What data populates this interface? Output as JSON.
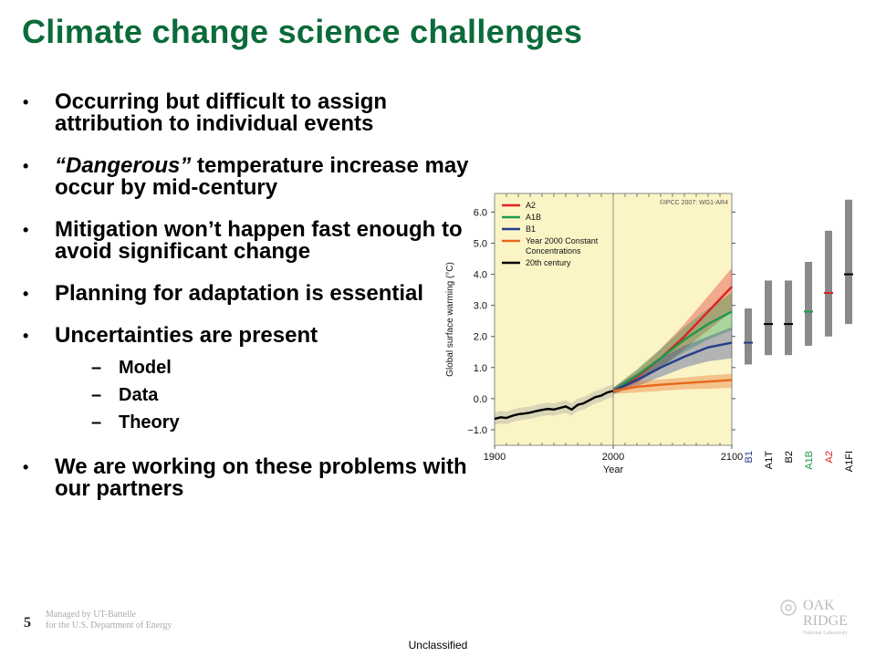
{
  "slide": {
    "title": "Climate change science challenges",
    "page_number": "5",
    "managed_by_line1": "Managed by UT-Battelle",
    "managed_by_line2": "for the U.S. Department of Energy",
    "classification": "Unclassified",
    "logo_line1": "OAK",
    "logo_line2": "RIDGE",
    "logo_line3": "National Laboratory",
    "bullets": [
      {
        "text": "Occurring but difficult to assign attribution to  individual events"
      },
      {
        "italic": "“Dangerous”",
        "text": " temperature increase may occur by mid-century"
      },
      {
        "text": "Mitigation won’t happen fast enough to avoid significant change"
      },
      {
        "text": "Planning for adaptation is essential"
      },
      {
        "text": "Uncertainties are present",
        "subitems": [
          "Model",
          "Data",
          "Theory"
        ]
      },
      {
        "text": "We are working on these problems with our partners"
      }
    ]
  },
  "chart_data": {
    "type": "line",
    "credit": "©IPCC  2007: WG1-AR4",
    "xlabel": "Year",
    "ylabel": "Global surface warming (°C)",
    "xlim": [
      1900,
      2100
    ],
    "ylim": [
      -1.5,
      6.6
    ],
    "x_ticks": [
      "1900",
      "2000",
      "2100"
    ],
    "y_ticks": [
      "−1.0",
      "0.0",
      "1.0",
      "2.0",
      "3.0",
      "4.0",
      "5.0",
      "6.0"
    ],
    "y_tick_values": [
      -1,
      0,
      1,
      2,
      3,
      4,
      5,
      6
    ],
    "colors": {
      "plot_bg": "#fbf5c6",
      "A2": "#e02020",
      "A1B": "#1a9a4a",
      "B1": "#283c8c",
      "Constant": "#e8681c",
      "20th": "#000000"
    },
    "legend": [
      {
        "name": "A2",
        "color": "#e02020"
      },
      {
        "name": "A1B",
        "color": "#1a9a4a"
      },
      {
        "name": "B1",
        "color": "#283c8c"
      },
      {
        "name": "Year 2000 Constant",
        "name2": "Concentrations",
        "color": "#e8681c"
      },
      {
        "name": "20th century",
        "color": "#000000"
      }
    ],
    "series": [
      {
        "name": "20th century",
        "x": [
          1900,
          1905,
          1910,
          1915,
          1920,
          1925,
          1930,
          1935,
          1940,
          1945,
          1950,
          1955,
          1960,
          1965,
          1970,
          1975,
          1980,
          1985,
          1990,
          1995,
          2000
        ],
        "y": [
          -0.65,
          -0.6,
          -0.62,
          -0.55,
          -0.5,
          -0.48,
          -0.45,
          -0.4,
          -0.36,
          -0.33,
          -0.35,
          -0.3,
          -0.25,
          -0.35,
          -0.2,
          -0.15,
          -0.05,
          0.05,
          0.1,
          0.2,
          0.25
        ],
        "band": 0.2
      },
      {
        "name": "A2",
        "x": [
          2000,
          2020,
          2040,
          2060,
          2080,
          2100
        ],
        "y": [
          0.25,
          0.7,
          1.3,
          2.0,
          2.8,
          3.6
        ],
        "band_lo": [
          0.15,
          0.5,
          1.0,
          1.6,
          2.2,
          2.8
        ],
        "band_hi": [
          0.35,
          0.9,
          1.6,
          2.4,
          3.3,
          4.2
        ]
      },
      {
        "name": "A1B",
        "x": [
          2000,
          2020,
          2040,
          2060,
          2080,
          2100
        ],
        "y": [
          0.25,
          0.75,
          1.3,
          1.9,
          2.4,
          2.8
        ],
        "band_lo": [
          0.15,
          0.55,
          1.0,
          1.5,
          1.9,
          2.2
        ],
        "band_hi": [
          0.35,
          0.95,
          1.6,
          2.3,
          2.9,
          3.4
        ]
      },
      {
        "name": "B1",
        "x": [
          2000,
          2020,
          2040,
          2060,
          2080,
          2100
        ],
        "y": [
          0.25,
          0.6,
          1.0,
          1.35,
          1.65,
          1.8
        ],
        "band_lo": [
          0.15,
          0.4,
          0.7,
          1.0,
          1.2,
          1.3
        ],
        "band_hi": [
          0.35,
          0.8,
          1.3,
          1.7,
          2.0,
          2.3
        ]
      },
      {
        "name": "Year 2000 Constant Concentrations",
        "x": [
          2000,
          2020,
          2040,
          2060,
          2080,
          2100
        ],
        "y": [
          0.25,
          0.38,
          0.45,
          0.5,
          0.55,
          0.6
        ],
        "band_lo": [
          0.15,
          0.2,
          0.25,
          0.3,
          0.32,
          0.35
        ],
        "band_hi": [
          0.35,
          0.55,
          0.62,
          0.68,
          0.75,
          0.8
        ]
      }
    ],
    "range_bars": [
      {
        "name": "B1",
        "low": 1.1,
        "high": 2.9,
        "best": 1.8,
        "color": "#283c8c",
        "label_color": "#283c8c"
      },
      {
        "name": "A1T",
        "low": 1.4,
        "high": 3.8,
        "best": 2.4,
        "color": "#000000",
        "label_color": "#000000"
      },
      {
        "name": "B2",
        "low": 1.4,
        "high": 3.8,
        "best": 2.4,
        "color": "#000000",
        "label_color": "#000000"
      },
      {
        "name": "A1B",
        "low": 1.7,
        "high": 4.4,
        "best": 2.8,
        "color": "#1a9a4a",
        "label_color": "#1a9a4a"
      },
      {
        "name": "A2",
        "low": 2.0,
        "high": 5.4,
        "best": 3.4,
        "color": "#e02020",
        "label_color": "#e02020"
      },
      {
        "name": "A1FI",
        "low": 2.4,
        "high": 6.4,
        "best": 4.0,
        "color": "#000000",
        "label_color": "#000000"
      }
    ]
  }
}
